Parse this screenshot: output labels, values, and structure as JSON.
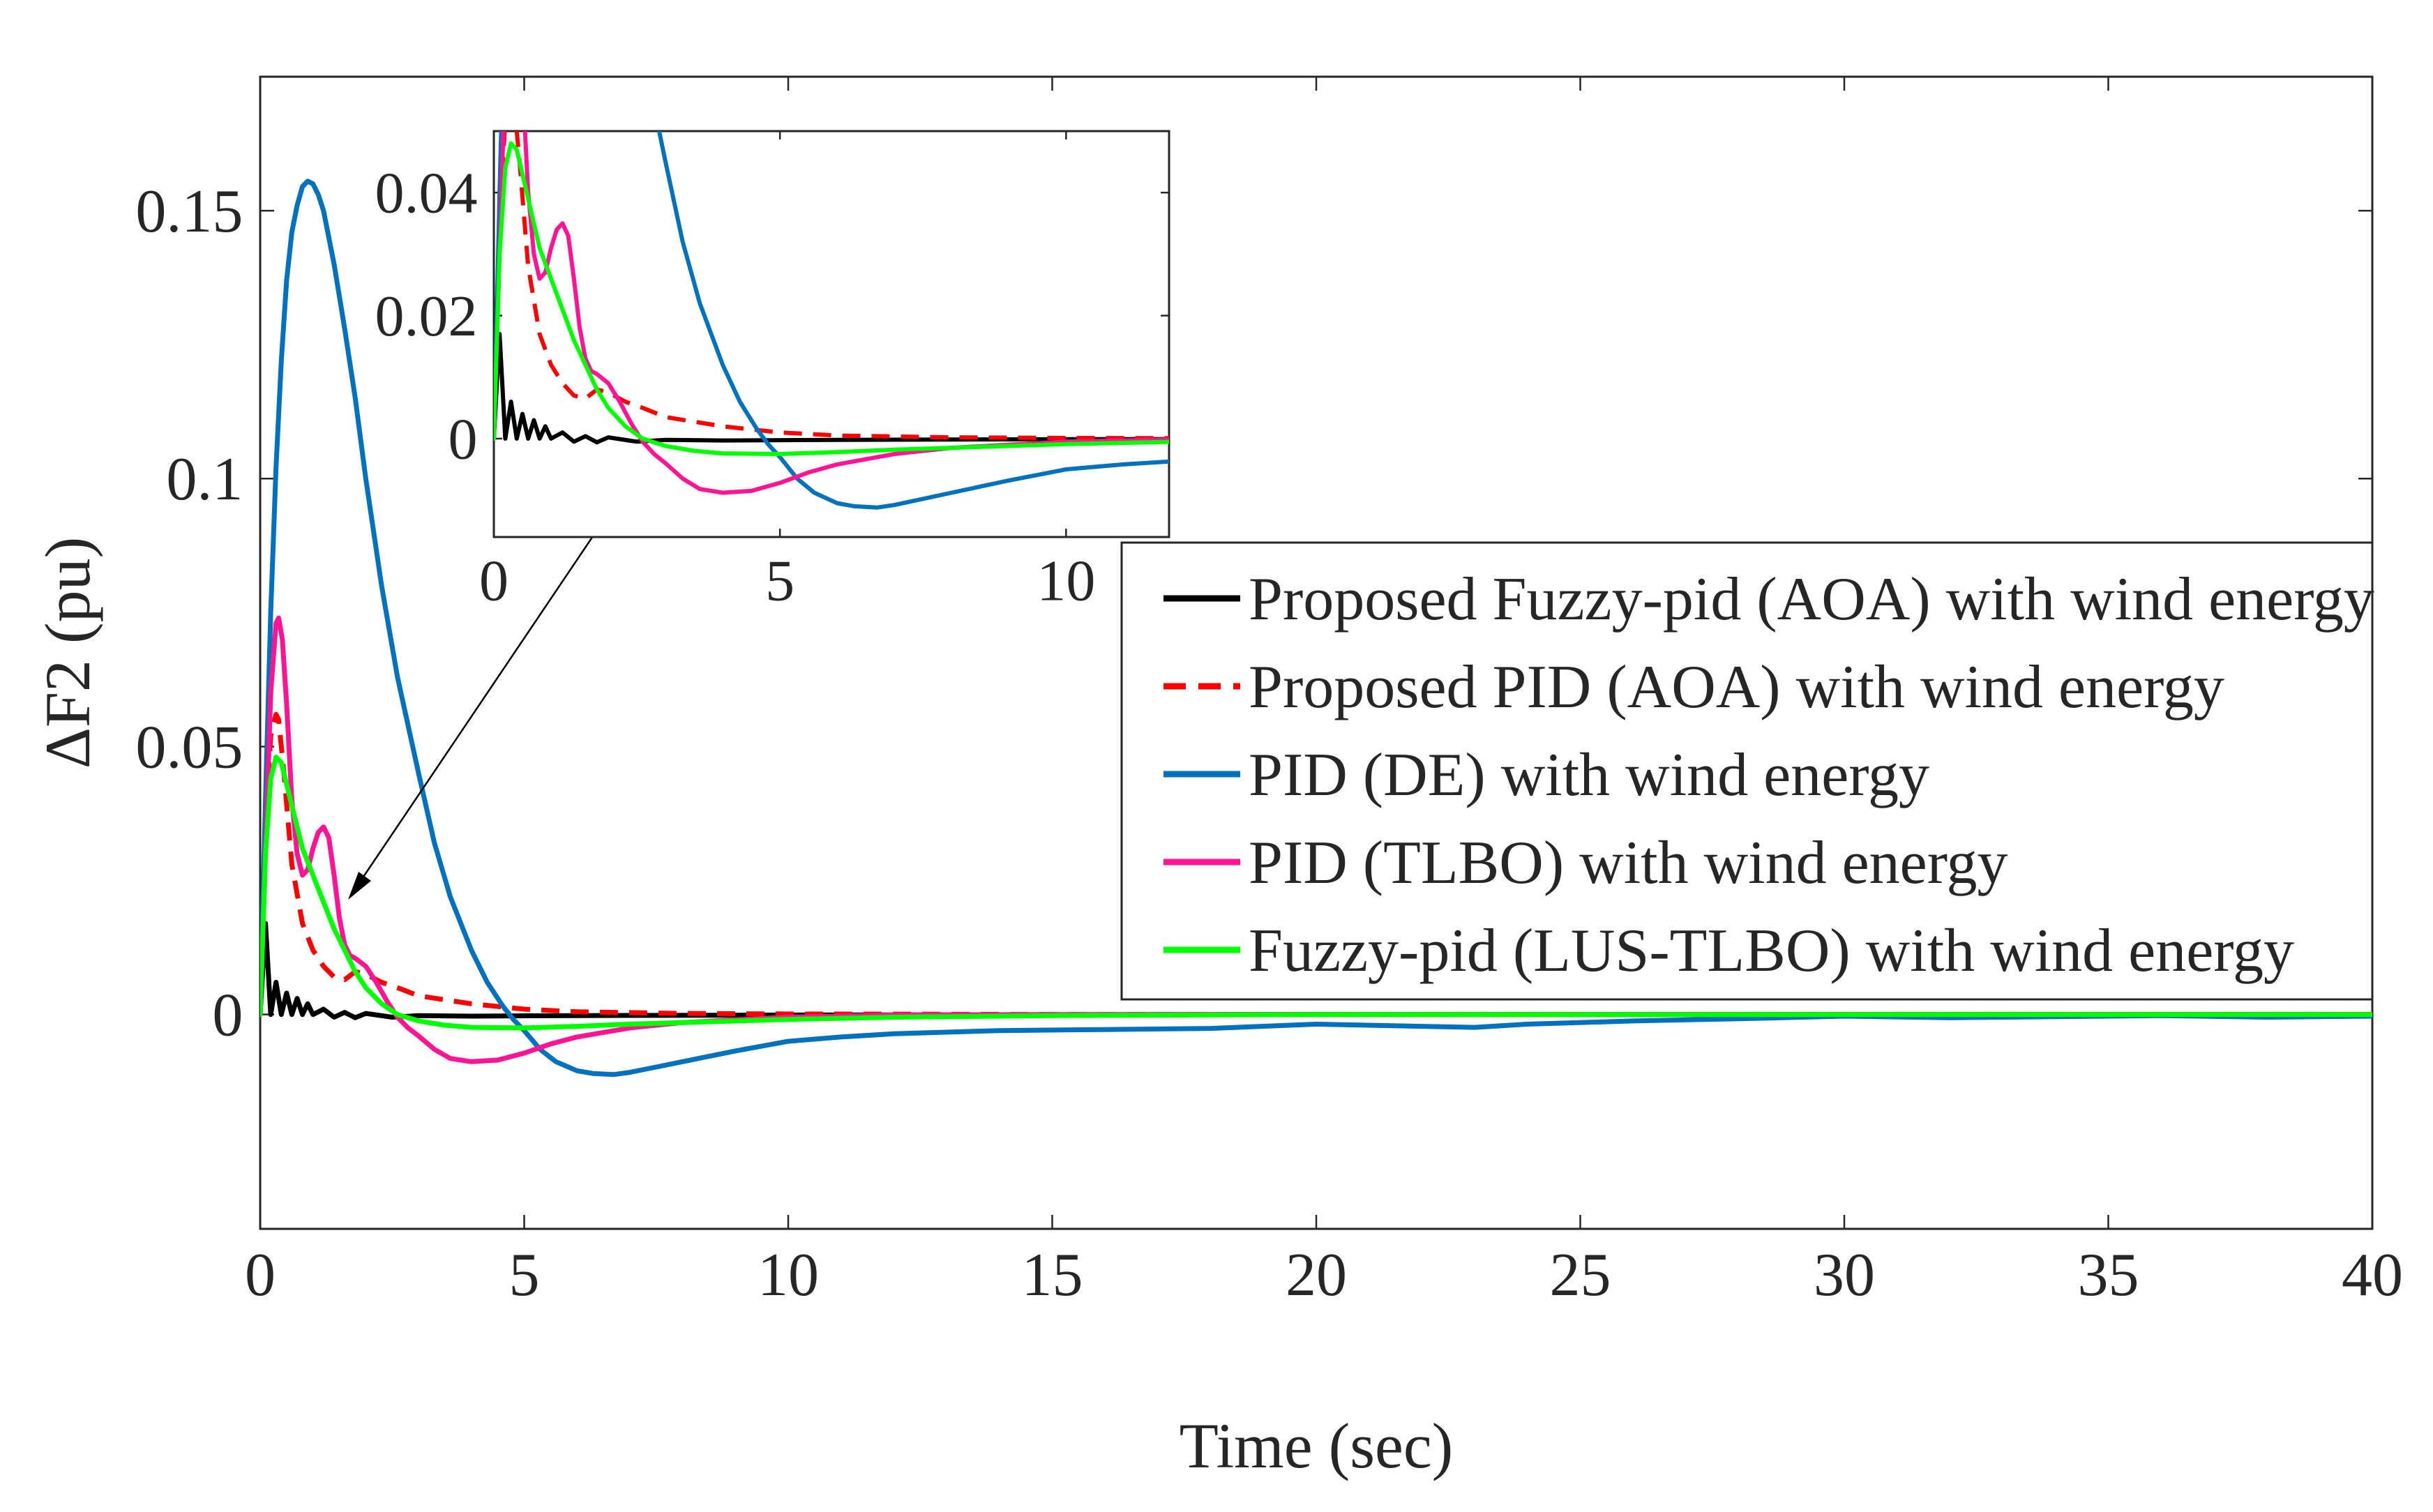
{
  "chart_data": {
    "type": "line",
    "title": "",
    "xlabel": "Time (sec)",
    "ylabel": "ΔF2 (pu)",
    "xlim": [
      0,
      40
    ],
    "ylim": [
      -0.04,
      0.175
    ],
    "xticks": [
      0,
      5,
      10,
      15,
      20,
      25,
      30,
      35,
      40
    ],
    "xtick_labels": [
      "0",
      "5",
      "10",
      "15",
      "20",
      "25",
      "30",
      "35",
      "40"
    ],
    "yticks": [
      0,
      0.05,
      0.1,
      0.15
    ],
    "ytick_labels": [
      "0",
      "0.05",
      "0.1",
      "0.15"
    ],
    "grid": false,
    "legend_position": "right, below inset",
    "series": [
      {
        "name": "Proposed Fuzzy-pid (AOA) with wind energy",
        "color": "#000000",
        "dash": "solid",
        "x": [
          0,
          0.1,
          0.2,
          0.3,
          0.4,
          0.5,
          0.6,
          0.7,
          0.8,
          0.9,
          1.0,
          1.2,
          1.4,
          1.6,
          1.8,
          2.0,
          2.5,
          3.0,
          4.0,
          6.0,
          10.0,
          20.0,
          40.0
        ],
        "y": [
          0,
          0.017,
          0.0,
          0.006,
          0.0,
          0.004,
          0.0,
          0.003,
          0.0,
          0.002,
          0.0,
          0.001,
          -0.0005,
          0.0004,
          -0.0006,
          0.0002,
          -0.0005,
          -0.0002,
          -0.0003,
          -0.0002,
          -0.0001,
          0.0,
          0.0
        ]
      },
      {
        "name": "Proposed PID (AOA) with wind energy",
        "color": "#ff0000",
        "dash": "dashed",
        "x": [
          0,
          0.1,
          0.2,
          0.3,
          0.35,
          0.45,
          0.6,
          0.8,
          1.0,
          1.2,
          1.4,
          1.6,
          1.8,
          2.0,
          2.3,
          2.6,
          3.0,
          4.0,
          5.0,
          6.0,
          8.0,
          10.0,
          15.0,
          40.0
        ],
        "y": [
          0,
          0.035,
          0.052,
          0.056,
          0.055,
          0.045,
          0.028,
          0.017,
          0.012,
          0.009,
          0.007,
          0.0065,
          0.008,
          0.0075,
          0.006,
          0.005,
          0.0035,
          0.002,
          0.001,
          0.0005,
          0.0002,
          0.0001,
          0.0,
          0.0
        ]
      },
      {
        "name": "PID (DE) with wind energy",
        "color": "#0072bd",
        "dash": "solid",
        "x": [
          0,
          0.1,
          0.2,
          0.3,
          0.4,
          0.5,
          0.6,
          0.7,
          0.8,
          0.9,
          1.0,
          1.1,
          1.2,
          1.4,
          1.6,
          1.8,
          2.0,
          2.3,
          2.6,
          3.0,
          3.3,
          3.6,
          4.0,
          4.3,
          4.6,
          4.8,
          5.0,
          5.3,
          5.6,
          6.0,
          6.3,
          6.7,
          7.0,
          7.5,
          8.0,
          9.0,
          10.0,
          11.0,
          12.0,
          14.0,
          16.0,
          18.0,
          20.0,
          22.0,
          23.0,
          24.0,
          26.0,
          28.0,
          30.0,
          32.0,
          34.0,
          36.0,
          38.0,
          40.0
        ],
        "y": [
          0,
          0.04,
          0.075,
          0.102,
          0.122,
          0.137,
          0.146,
          0.151,
          0.1545,
          0.1555,
          0.155,
          0.153,
          0.15,
          0.14,
          0.128,
          0.115,
          0.1,
          0.08,
          0.063,
          0.045,
          0.032,
          0.022,
          0.012,
          0.006,
          0.0015,
          -0.001,
          -0.003,
          -0.0065,
          -0.0088,
          -0.0105,
          -0.011,
          -0.0112,
          -0.0108,
          -0.0098,
          -0.0088,
          -0.0068,
          -0.005,
          -0.0042,
          -0.0036,
          -0.003,
          -0.0028,
          -0.0026,
          -0.0018,
          -0.0022,
          -0.0024,
          -0.0018,
          -0.0012,
          -0.0008,
          -0.0003,
          -0.0006,
          -0.0004,
          -0.0002,
          -0.0005,
          -0.0003
        ]
      },
      {
        "name": "PID (TLBO) with wind energy",
        "color": "#ff1493",
        "dash": "solid",
        "x": [
          0,
          0.1,
          0.2,
          0.3,
          0.35,
          0.42,
          0.5,
          0.6,
          0.7,
          0.8,
          0.9,
          1.0,
          1.1,
          1.2,
          1.3,
          1.4,
          1.5,
          1.6,
          1.7,
          1.8,
          2.0,
          2.2,
          2.4,
          2.6,
          2.8,
          3.0,
          3.3,
          3.6,
          4.0,
          4.5,
          5.0,
          5.5,
          6.0,
          7.0,
          8.0,
          10.0,
          12.0,
          15.0,
          20.0,
          40.0
        ],
        "y": [
          0,
          0.03,
          0.06,
          0.073,
          0.074,
          0.07,
          0.058,
          0.04,
          0.03,
          0.026,
          0.027,
          0.031,
          0.034,
          0.035,
          0.033,
          0.026,
          0.018,
          0.013,
          0.011,
          0.0105,
          0.009,
          0.006,
          0.0025,
          -0.0005,
          -0.0025,
          -0.004,
          -0.0065,
          -0.0082,
          -0.0088,
          -0.0085,
          -0.0072,
          -0.0055,
          -0.0042,
          -0.0025,
          -0.0015,
          -0.0005,
          -0.0001,
          0.0,
          0.0,
          0.0
        ]
      },
      {
        "name": "Fuzzy-pid (LUS-TLBO) with wind energy",
        "color": "#00ff00",
        "dash": "solid",
        "x": [
          0,
          0.1,
          0.2,
          0.3,
          0.4,
          0.5,
          0.6,
          0.7,
          0.8,
          1.0,
          1.2,
          1.4,
          1.6,
          1.8,
          2.0,
          2.3,
          2.6,
          3.0,
          3.5,
          4.0,
          5.0,
          6.0,
          7.0,
          8.0,
          10.0,
          12.0,
          15.0,
          20.0,
          40.0
        ],
        "y": [
          0,
          0.03,
          0.044,
          0.048,
          0.047,
          0.043,
          0.039,
          0.035,
          0.031,
          0.026,
          0.021,
          0.016,
          0.012,
          0.008,
          0.005,
          0.002,
          0.0,
          -0.0012,
          -0.002,
          -0.0024,
          -0.0025,
          -0.0022,
          -0.0018,
          -0.0015,
          -0.0009,
          -0.0005,
          -0.0002,
          0.0,
          0.0
        ]
      }
    ],
    "inset": {
      "xlim": [
        0,
        11.8
      ],
      "ylim": [
        -0.016,
        0.05
      ],
      "xticks": [
        0,
        5,
        10
      ],
      "xtick_labels": [
        "0",
        "5",
        "10"
      ],
      "yticks": [
        0,
        0.02,
        0.04
      ],
      "ytick_labels": [
        "0",
        "0.02",
        "0.04"
      ]
    }
  }
}
